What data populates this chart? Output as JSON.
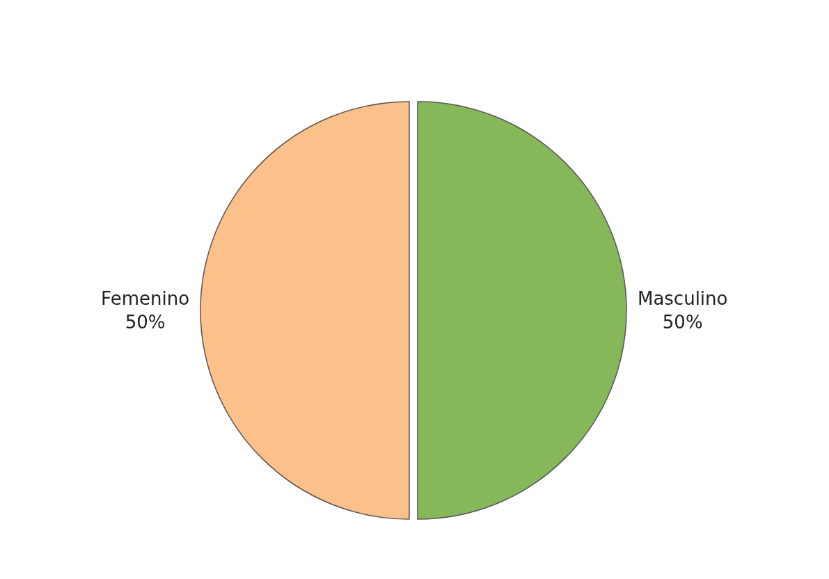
{
  "chart_data": {
    "type": "pie",
    "categories": [
      "Masculino",
      "Femenino"
    ],
    "values": [
      50,
      50
    ],
    "value_labels": [
      "50%",
      "50%"
    ],
    "colors": [
      "#86b85a",
      "#fcc08a"
    ],
    "legend": false
  }
}
